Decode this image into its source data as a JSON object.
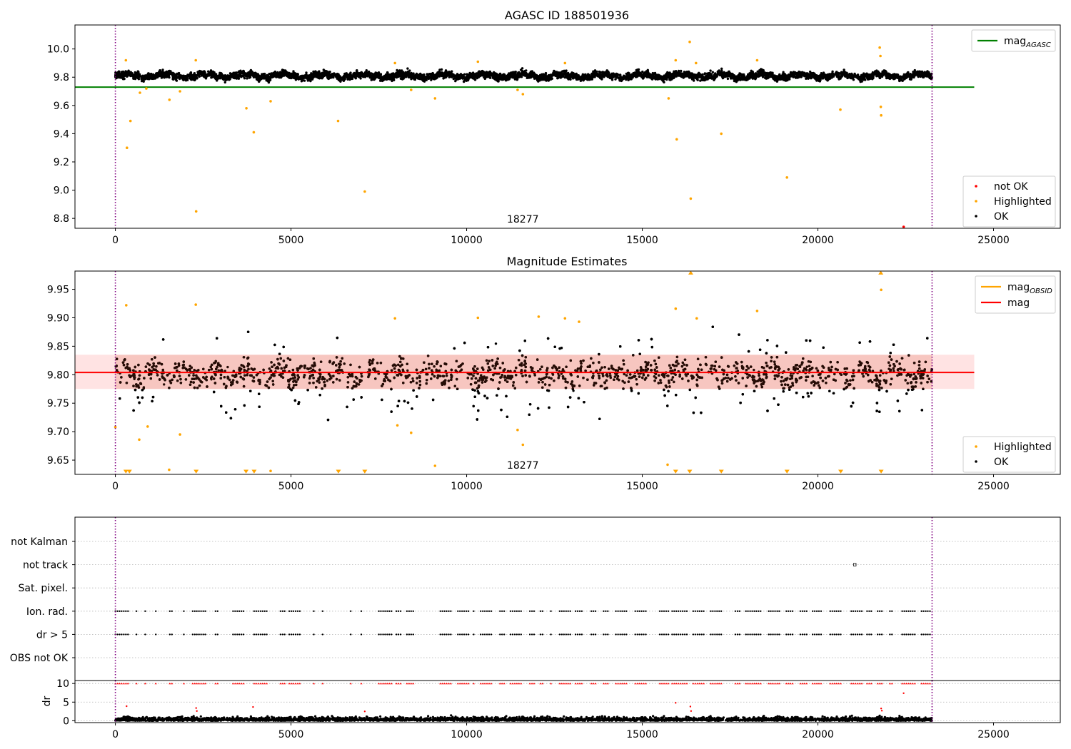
{
  "figure": {
    "title_top": "AGASC ID 188501936",
    "title_mid": "Magnitude Estimates"
  },
  "chart_data": [
    {
      "type": "scatter",
      "title": "AGASC ID 188501936",
      "xlabel": "",
      "ylabel": "",
      "xlim": [
        -1150,
        26900
      ],
      "ylim": [
        8.73,
        10.17
      ],
      "xticks": [
        0,
        5000,
        10000,
        15000,
        20000,
        25000
      ],
      "yticks": [
        8.8,
        9.0,
        9.2,
        9.4,
        9.6,
        9.8,
        10.0
      ],
      "ytick_labels": [
        "8.8",
        "9.0",
        "9.2",
        "9.4",
        "9.6",
        "9.8",
        "10.0"
      ],
      "grid": false,
      "legend_upper": {
        "placement": "top-right",
        "entries": [
          {
            "label": "mag",
            "subscript": "AGASC",
            "color": "#008000",
            "marker": "line"
          }
        ]
      },
      "legend_lower": {
        "placement": "bottom-right",
        "entries": [
          {
            "label": "not OK",
            "color": "#ff0000",
            "marker": "dot"
          },
          {
            "label": "Highlighted",
            "color": "#ffa500",
            "marker": "dot"
          },
          {
            "label": "OK",
            "color": "#000000",
            "marker": "dot"
          }
        ]
      },
      "obsid_label": "18277",
      "obsid_label_x": 11600,
      "reference_lines": [
        {
          "name": "mag_AGASC",
          "y": 9.73,
          "x_range": [
            -1150,
            24450
          ],
          "color": "#008000"
        }
      ],
      "vlines": [
        {
          "x": 0,
          "color": "#800080",
          "style": "dotted"
        },
        {
          "x": 23250,
          "color": "#800080",
          "style": "dotted"
        }
      ],
      "ok_band": {
        "x_range": [
          0,
          23250
        ],
        "center": 9.81,
        "half_width": 0.04,
        "density": "dense"
      },
      "series": [
        {
          "name": "Highlighted",
          "color": "#ffa500",
          "points": [
            [
              300,
              9.92
            ],
            [
              330,
              9.3
            ],
            [
              430,
              9.49
            ],
            [
              700,
              9.69
            ],
            [
              880,
              9.72
            ],
            [
              1540,
              9.64
            ],
            [
              1840,
              9.7
            ],
            [
              2290,
              9.92
            ],
            [
              2300,
              8.85
            ],
            [
              3730,
              9.58
            ],
            [
              3940,
              9.41
            ],
            [
              4420,
              9.63
            ],
            [
              6340,
              9.49
            ],
            [
              7100,
              8.99
            ],
            [
              7960,
              9.9
            ],
            [
              8420,
              9.71
            ],
            [
              9100,
              9.65
            ],
            [
              10320,
              9.91
            ],
            [
              11450,
              9.71
            ],
            [
              11600,
              9.68
            ],
            [
              12800,
              9.9
            ],
            [
              15750,
              9.65
            ],
            [
              15950,
              9.92
            ],
            [
              15980,
              9.36
            ],
            [
              16350,
              10.05
            ],
            [
              16380,
              8.94
            ],
            [
              16530,
              9.9
            ],
            [
              17250,
              9.4
            ],
            [
              18270,
              9.92
            ],
            [
              19120,
              9.09
            ],
            [
              20640,
              9.57
            ],
            [
              21760,
              10.01
            ],
            [
              21780,
              9.95
            ],
            [
              21790,
              9.59
            ],
            [
              21800,
              9.53
            ]
          ]
        },
        {
          "name": "not OK",
          "color": "#ff0000",
          "points": [
            [
              22440,
              8.74
            ]
          ]
        }
      ]
    },
    {
      "type": "scatter",
      "title": "Magnitude Estimates",
      "xlabel": "",
      "ylabel": "",
      "xlim": [
        -1150,
        26900
      ],
      "ylim": [
        9.625,
        9.982
      ],
      "xticks": [
        0,
        5000,
        10000,
        15000,
        20000,
        25000
      ],
      "yticks": [
        9.65,
        9.7,
        9.75,
        9.8,
        9.85,
        9.9,
        9.95
      ],
      "ytick_labels": [
        "9.65",
        "9.70",
        "9.75",
        "9.80",
        "9.85",
        "9.90",
        "9.95"
      ],
      "grid": false,
      "legend_upper": {
        "placement": "top-right",
        "entries": [
          {
            "label": "mag",
            "subscript": "OBSID",
            "color": "#ffa500",
            "marker": "line"
          },
          {
            "label": "mag",
            "subscript": "",
            "color": "#ff0000",
            "marker": "line"
          }
        ]
      },
      "legend_lower": {
        "placement": "bottom-right",
        "entries": [
          {
            "label": "Highlighted",
            "color": "#ffa500",
            "marker": "dot"
          },
          {
            "label": "OK",
            "color": "#000000",
            "marker": "dot"
          }
        ]
      },
      "obsid_label": "18277",
      "obsid_label_x": 11600,
      "mag_line": {
        "y": 9.804,
        "x_range": [
          -1150,
          24450
        ],
        "color": "#ff0000"
      },
      "mag_obsid_band": {
        "y_range": [
          9.775,
          9.835
        ],
        "x_range": [
          -1150,
          24450
        ],
        "color": "#ffc0c0"
      },
      "vlines": [
        {
          "x": 0,
          "color": "#800080",
          "style": "dotted"
        },
        {
          "x": 23250,
          "color": "#800080",
          "style": "dotted"
        }
      ],
      "ok_band": {
        "x_range": [
          0,
          23250
        ],
        "center": 9.802,
        "core_half_width": 0.03,
        "tail_half_width": 0.07,
        "density": "dense"
      },
      "series": [
        {
          "name": "Highlighted",
          "color": "#ffa500",
          "points": [
            [
              0,
              9.708
            ],
            [
              310,
              9.922
            ],
            [
              680,
              9.686
            ],
            [
              920,
              9.709
            ],
            [
              1530,
              9.633
            ],
            [
              1840,
              9.695
            ],
            [
              2290,
              9.923
            ],
            [
              4420,
              9.631
            ],
            [
              7960,
              9.899
            ],
            [
              8030,
              9.711
            ],
            [
              8420,
              9.698
            ],
            [
              9100,
              9.64
            ],
            [
              10320,
              9.9
            ],
            [
              11450,
              9.703
            ],
            [
              11600,
              9.677
            ],
            [
              12050,
              9.902
            ],
            [
              12800,
              9.899
            ],
            [
              13200,
              9.893
            ],
            [
              15720,
              9.642
            ],
            [
              15950,
              9.916
            ],
            [
              16550,
              9.899
            ],
            [
              18270,
              9.912
            ],
            [
              21800,
              9.949
            ]
          ]
        },
        {
          "name": "Highlighted (below axis)",
          "color": "#ffa500",
          "marker": "triangle-down",
          "y": 9.63,
          "x": [
            300,
            400,
            2300,
            3720,
            3950,
            6350,
            7100,
            15950,
            16350,
            17250,
            19120,
            20650,
            21800
          ]
        },
        {
          "name": "Highlighted (above axis)",
          "color": "#ffa500",
          "marker": "triangle-up",
          "y": 9.979,
          "x": [
            16380,
            21790
          ]
        }
      ]
    },
    {
      "type": "scatter",
      "title": "",
      "xlabel": "",
      "ylabel": "",
      "xlim": [
        -1150,
        26900
      ],
      "categories": [
        "not Kalman",
        "not track",
        "Sat. pixel.",
        "Ion. rad.",
        "dr > 5",
        "OBS not OK"
      ],
      "grid": "horizontal dotted",
      "vlines": [
        {
          "x": 0,
          "color": "#800080",
          "style": "dotted"
        },
        {
          "x": 23250,
          "color": "#800080",
          "style": "dotted"
        }
      ],
      "flags": [
        {
          "category": "not track",
          "x": [
            21050
          ],
          "marker": "open-square"
        },
        {
          "category": "Ion. rad.",
          "x_ranges": [
            [
              0,
              400
            ],
            [
              600,
              650
            ],
            [
              850,
              900
            ],
            [
              1150,
              1200
            ],
            [
              1550,
              1650
            ],
            [
              1950,
              2000
            ],
            [
              2200,
              2600
            ],
            [
              2850,
              2950
            ],
            [
              3350,
              3700
            ],
            [
              3950,
              4350
            ],
            [
              4700,
              4850
            ],
            [
              4950,
              5250
            ],
            [
              5650,
              5700
            ],
            [
              5900,
              5950
            ],
            [
              6700,
              6750
            ],
            [
              7000,
              7050
            ],
            [
              7500,
              7900
            ],
            [
              8000,
              8150
            ],
            [
              8300,
              8500
            ],
            [
              9250,
              9550
            ],
            [
              9750,
              10050
            ],
            [
              10200,
              10250
            ],
            [
              10400,
              10750
            ],
            [
              10950,
              11100
            ],
            [
              11250,
              11550
            ],
            [
              11800,
              11950
            ],
            [
              12100,
              12200
            ],
            [
              12400,
              12450
            ],
            [
              12650,
              12950
            ],
            [
              13100,
              13300
            ],
            [
              13550,
              13700
            ],
            [
              13900,
              14050
            ],
            [
              14250,
              14550
            ],
            [
              14800,
              15100
            ],
            [
              15500,
              15750
            ],
            [
              15850,
              16300
            ],
            [
              16450,
              16800
            ],
            [
              16950,
              17300
            ],
            [
              17650,
              17800
            ],
            [
              17950,
              18400
            ],
            [
              18600,
              18900
            ],
            [
              19100,
              19300
            ],
            [
              19500,
              19700
            ],
            [
              19850,
              20100
            ],
            [
              20350,
              20650
            ],
            [
              20950,
              21250
            ],
            [
              21400,
              21550
            ],
            [
              21700,
              21850
            ],
            [
              22050,
              22150
            ],
            [
              22400,
              22800
            ],
            [
              22950,
              23200
            ]
          ]
        },
        {
          "category": "dr > 5",
          "x_ranges": "same as Ion. rad."
        }
      ]
    },
    {
      "type": "scatter",
      "title": "",
      "xlabel": "",
      "ylabel": "dr",
      "xlim": [
        -1150,
        26900
      ],
      "ylim": [
        -0.5,
        10.8
      ],
      "xticks": [
        0,
        5000,
        10000,
        15000,
        20000,
        25000
      ],
      "yticks": [
        0,
        5,
        10
      ],
      "ytick_labels": [
        "0",
        "5",
        "10"
      ],
      "grid": "horizontal dotted",
      "vlines": [
        {
          "x": 0,
          "color": "#800080",
          "style": "dotted"
        },
        {
          "x": 23250,
          "color": "#800080",
          "style": "dotted"
        }
      ],
      "ok_band": {
        "x_range": [
          0,
          23250
        ],
        "y_range": [
          0,
          1.3
        ],
        "color": "#000000",
        "density": "dense"
      },
      "series": [
        {
          "name": "dr clipped (not OK)",
          "color": "#ff0000",
          "marker": "triangle-up",
          "y": 10,
          "x_ranges": "same as Ion. rad."
        },
        {
          "name": "dr outliers",
          "color": "#ff0000",
          "points": [
            [
              320,
              3.9
            ],
            [
              2300,
              3.4
            ],
            [
              2320,
              2.6
            ],
            [
              3920,
              3.7
            ],
            [
              7100,
              2.5
            ],
            [
              15950,
              4.8
            ],
            [
              16370,
              3.8
            ],
            [
              16390,
              2.6
            ],
            [
              21800,
              3.3
            ],
            [
              21820,
              2.7
            ],
            [
              22440,
              7.4
            ]
          ]
        }
      ]
    }
  ]
}
